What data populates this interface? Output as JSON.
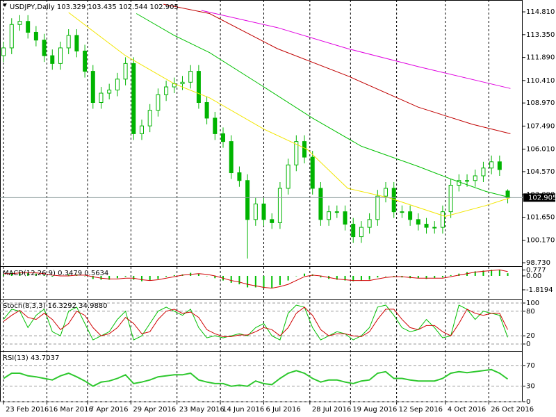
{
  "chart_data": [
    {
      "type": "candlestick",
      "title": "USDJPY,Daily  103.329 103.435 102.544 102.905",
      "x": [
        0,
        3,
        6,
        9,
        12,
        15,
        18,
        21,
        24,
        27,
        30,
        33,
        36,
        39,
        42,
        45,
        48,
        51,
        54,
        57,
        60,
        63,
        66,
        69,
        72,
        75,
        78,
        81,
        84,
        87,
        90,
        93,
        96,
        99,
        102,
        105,
        108,
        111,
        114,
        117,
        120,
        123,
        126,
        129,
        132,
        135,
        138,
        141,
        144,
        147,
        150,
        153,
        156,
        159,
        162,
        165,
        168,
        171,
        174,
        177,
        180,
        183,
        186
      ],
      "open": [
        112.0,
        112.5,
        114.0,
        114.2,
        113.5,
        113.0,
        112.0,
        111.5,
        112.5,
        113.3,
        112.3,
        111.0,
        109.0,
        109.6,
        109.8,
        110.5,
        111.5,
        107.0,
        107.5,
        108.5,
        109.5,
        110.0,
        110.2,
        110.3,
        111.0,
        109.0,
        108.0,
        107.0,
        106.5,
        104.5,
        104.0,
        101.5,
        102.5,
        101.5,
        101.3,
        103.5,
        105.0,
        106.5,
        105.5,
        103.5,
        101.5,
        102.0,
        102.0,
        101.2,
        100.4,
        101.0,
        101.5,
        103.0,
        103.5,
        102.0,
        102.0,
        101.5,
        101.2,
        101.0,
        101.0,
        102.0,
        103.7,
        104.0,
        104.0,
        104.3,
        104.8,
        105.2,
        103.329
      ],
      "high": [
        112.9,
        114.4,
        114.6,
        114.6,
        113.9,
        113.4,
        112.4,
        112.9,
        113.7,
        113.7,
        112.7,
        111.4,
        110.0,
        110.2,
        110.9,
        111.9,
        111.9,
        107.9,
        108.9,
        109.9,
        110.4,
        110.6,
        110.7,
        111.4,
        111.4,
        109.4,
        108.4,
        107.4,
        106.9,
        104.9,
        104.4,
        102.9,
        102.9,
        101.9,
        103.9,
        105.4,
        106.9,
        106.9,
        105.9,
        103.9,
        102.4,
        102.4,
        102.4,
        101.6,
        101.4,
        101.9,
        103.4,
        103.9,
        103.9,
        102.4,
        102.4,
        101.9,
        101.6,
        101.4,
        102.4,
        104.1,
        104.4,
        104.4,
        104.7,
        105.2,
        105.6,
        105.6,
        103.435
      ],
      "low": [
        111.6,
        112.1,
        113.6,
        113.1,
        112.6,
        111.6,
        111.1,
        111.1,
        112.1,
        111.9,
        110.6,
        108.6,
        108.6,
        109.2,
        109.4,
        110.1,
        106.6,
        106.6,
        107.1,
        108.1,
        109.1,
        109.6,
        109.8,
        109.9,
        108.6,
        107.6,
        106.6,
        106.1,
        104.1,
        103.6,
        99.0,
        101.1,
        101.1,
        100.9,
        100.9,
        103.1,
        104.6,
        105.1,
        103.1,
        101.1,
        101.1,
        101.6,
        100.8,
        100.0,
        100.0,
        100.6,
        101.1,
        102.6,
        101.6,
        101.6,
        101.1,
        100.8,
        100.6,
        100.6,
        100.6,
        101.6,
        103.3,
        103.6,
        103.6,
        103.9,
        104.4,
        104.3,
        102.544
      ],
      "close": [
        112.5,
        114.0,
        114.2,
        113.5,
        113.0,
        112.0,
        111.5,
        112.5,
        113.3,
        112.3,
        111.0,
        109.0,
        109.6,
        109.8,
        110.5,
        111.5,
        107.0,
        107.5,
        108.5,
        109.5,
        110.0,
        110.2,
        110.3,
        111.0,
        109.0,
        108.0,
        107.0,
        106.5,
        104.5,
        104.0,
        101.5,
        102.5,
        101.5,
        101.3,
        103.5,
        105.0,
        106.5,
        105.5,
        103.5,
        101.5,
        102.0,
        102.0,
        101.2,
        100.4,
        101.0,
        101.5,
        103.0,
        103.5,
        102.0,
        102.0,
        101.5,
        101.2,
        101.0,
        101.0,
        102.0,
        103.7,
        104.0,
        104.0,
        104.3,
        104.8,
        105.2,
        104.7,
        102.905
      ],
      "up_color": "#ffffff",
      "down_color": "#00b400",
      "wick_color": "#00b400",
      "series": [
        {
          "color": "#f2e600",
          "x": [
            24,
            45,
            63,
            76,
            96,
            112,
            127,
            142,
            163,
            178,
            187
          ],
          "values": [
            114.77,
            112.0,
            110.2,
            109.3,
            107.3,
            106.0,
            103.5,
            102.9,
            101.7,
            102.4,
            102.9
          ]
        },
        {
          "color": "#00c000",
          "x": [
            49,
            63,
            76,
            96,
            114,
            132,
            153,
            165,
            178,
            187
          ],
          "values": [
            114.7,
            113.3,
            112.2,
            110.0,
            108.0,
            106.2,
            104.9,
            104.1,
            103.3,
            102.9
          ]
        },
        {
          "color": "#c00000",
          "x": [
            59,
            76,
            101,
            127,
            153,
            173,
            187
          ],
          "values": [
            115.3,
            114.7,
            112.45,
            110.7,
            108.7,
            107.6,
            107.0
          ]
        },
        {
          "color": "#e000e0",
          "x": [
            73,
            101,
            127,
            153,
            187
          ],
          "values": [
            114.9,
            113.8,
            112.45,
            111.3,
            109.9
          ]
        }
      ],
      "last_price": 102.905,
      "xlim": [
        -1.3,
        191.5
      ],
      "xticks": [
        {
          "value": 0,
          "label": "23 Feb 2016"
        },
        {
          "value": 16,
          "label": "16 Mar 2016"
        },
        {
          "value": 31,
          "label": "7 Apr 2016"
        },
        {
          "value": 47,
          "label": "29 Apr 2016"
        },
        {
          "value": 64,
          "label": "23 May 2016"
        },
        {
          "value": 80,
          "label": "14 Jun 2016"
        },
        {
          "value": 96,
          "label": "6 Jul 2016"
        },
        {
          "value": 113,
          "label": "28 Jul 2016"
        },
        {
          "value": 128,
          "label": "19 Aug 2016"
        },
        {
          "value": 145,
          "label": "12 Sep 2016"
        },
        {
          "value": 163,
          "label": "4 Oct 2016"
        },
        {
          "value": 179,
          "label": "26 Oct 2016"
        }
      ],
      "ylim": [
        98.51,
        115.57
      ],
      "yticks": [
        {
          "value": 114.81,
          "label": "114.810"
        },
        {
          "value": 113.35,
          "label": "113.350"
        },
        {
          "value": 111.89,
          "label": "111.890"
        },
        {
          "value": 110.41,
          "label": "110.410"
        },
        {
          "value": 108.97,
          "label": "108.970"
        },
        {
          "value": 107.49,
          "label": "107.490"
        },
        {
          "value": 106.01,
          "label": "106.010"
        },
        {
          "value": 104.57,
          "label": "104.570"
        },
        {
          "value": 103.09,
          "label": "103.090"
        },
        {
          "value": 101.65,
          "label": "101.650"
        },
        {
          "value": 100.17,
          "label": "100.170"
        },
        {
          "value": 98.73,
          "label": "98.730"
        }
      ],
      "grid": true
    },
    {
      "type": "bar",
      "title": "MACD(12,26,9) 0.3479 0.5634",
      "values": [
        0.2,
        0.4,
        0.5,
        0.4,
        0.3,
        0.1,
        -0.1,
        0.0,
        0.2,
        0.2,
        0.0,
        -0.4,
        -0.5,
        -0.5,
        -0.3,
        -0.1,
        -0.5,
        -0.7,
        -0.6,
        -0.4,
        -0.1,
        0.1,
        0.2,
        0.4,
        0.3,
        0.0,
        -0.3,
        -0.6,
        -0.9,
        -1.1,
        -1.5,
        -1.5,
        -1.6,
        -1.6,
        -1.2,
        -0.6,
        0.0,
        0.3,
        0.2,
        -0.2,
        -0.4,
        -0.5,
        -0.6,
        -0.7,
        -0.6,
        -0.5,
        -0.2,
        0.0,
        -0.1,
        -0.2,
        -0.3,
        -0.3,
        -0.4,
        -0.3,
        -0.2,
        0.1,
        0.3,
        0.5,
        0.6,
        0.7,
        0.8,
        0.8,
        0.3479
      ],
      "color": "#00c000",
      "series": [
        {
          "color": "#d00000",
          "values": [
            0.3,
            0.3,
            0.4,
            0.4,
            0.4,
            0.3,
            0.1,
            0.0,
            0.0,
            0.1,
            0.1,
            -0.1,
            -0.3,
            -0.4,
            -0.4,
            -0.3,
            -0.3,
            -0.5,
            -0.6,
            -0.5,
            -0.3,
            -0.1,
            0.1,
            0.2,
            0.3,
            0.2,
            0.0,
            -0.3,
            -0.6,
            -0.8,
            -1.1,
            -1.3,
            -1.5,
            -1.6,
            -1.4,
            -1.1,
            -0.6,
            -0.1,
            0.1,
            0.0,
            -0.2,
            -0.4,
            -0.5,
            -0.6,
            -0.6,
            -0.6,
            -0.4,
            -0.2,
            -0.1,
            -0.1,
            -0.2,
            -0.3,
            -0.3,
            -0.3,
            -0.3,
            -0.1,
            0.1,
            0.3,
            0.5,
            0.6,
            0.7,
            0.8,
            0.5634
          ]
        }
      ],
      "ylim": [
        -3.0,
        1.27
      ],
      "yticks": [
        0.777,
        {
          "value": 0,
          "label": "0.00"
        },
        -1.8194
      ]
    },
    {
      "type": "line",
      "title": "Stoch(8,3,3) 16.3292 34.9880",
      "series": [
        {
          "color": "#00c000",
          "values": [
            60,
            85,
            80,
            40,
            70,
            85,
            30,
            20,
            80,
            90,
            50,
            10,
            20,
            30,
            60,
            80,
            10,
            20,
            50,
            80,
            90,
            80,
            70,
            85,
            40,
            15,
            20,
            15,
            20,
            25,
            20,
            40,
            50,
            20,
            10,
            75,
            95,
            90,
            40,
            10,
            20,
            30,
            25,
            10,
            20,
            40,
            90,
            95,
            70,
            40,
            30,
            35,
            60,
            40,
            15,
            20,
            95,
            85,
            60,
            80,
            75,
            70,
            16.3292
          ]
        },
        {
          "color": "#d00000",
          "values": [
            55,
            70,
            82,
            65,
            60,
            75,
            60,
            35,
            50,
            80,
            70,
            40,
            20,
            25,
            40,
            65,
            50,
            25,
            30,
            60,
            80,
            85,
            75,
            78,
            65,
            35,
            25,
            18,
            18,
            22,
            22,
            30,
            40,
            35,
            20,
            40,
            75,
            90,
            70,
            35,
            20,
            25,
            25,
            20,
            18,
            30,
            60,
            85,
            85,
            60,
            40,
            35,
            45,
            45,
            30,
            20,
            50,
            85,
            75,
            70,
            75,
            75,
            34.988
          ]
        }
      ],
      "ylim": [
        -17,
        110.2
      ],
      "yticks": [
        100,
        80,
        20,
        0
      ]
    },
    {
      "type": "line",
      "title": "RSI(13) 43.7037",
      "series": [
        {
          "color": "#2ec82e",
          "values": [
            45,
            55,
            55,
            50,
            48,
            45,
            42,
            50,
            55,
            48,
            40,
            30,
            38,
            40,
            45,
            52,
            35,
            38,
            42,
            48,
            50,
            52,
            52,
            55,
            42,
            38,
            35,
            35,
            30,
            32,
            30,
            40,
            35,
            33,
            45,
            55,
            60,
            55,
            45,
            38,
            42,
            42,
            38,
            35,
            40,
            42,
            55,
            58,
            45,
            45,
            42,
            40,
            40,
            40,
            45,
            55,
            58,
            56,
            58,
            60,
            62,
            55,
            43.7037
          ]
        }
      ],
      "ylim": [
        0,
        98
      ],
      "yticks": [
        70,
        30,
        0
      ]
    }
  ]
}
